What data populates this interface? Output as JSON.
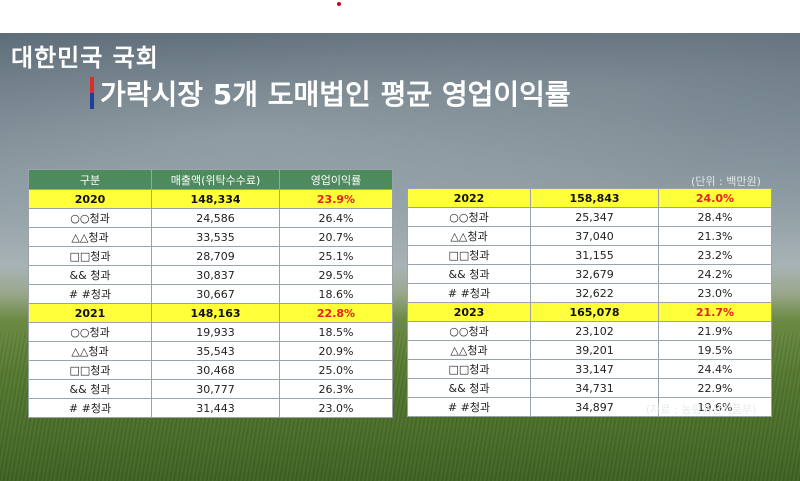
{
  "broadcaster_logo": "대한민국 국회",
  "title": "가락시장 5개 도매법인 평균 영업이익률",
  "unit_note": "(단위 : 백만원)",
  "source_note": "(자료 : 농림축산식품부)",
  "colors": {
    "header_green": "#4d8a5c",
    "year_highlight": "#ffff3a",
    "pct_red": "#e62020"
  },
  "table_left": {
    "headers": [
      "구분",
      "매출액(위탁수수료)",
      "영업이익률"
    ],
    "groups": [
      {
        "year": "2020",
        "total": "148,334",
        "rate": "23.9%",
        "rows": [
          [
            "○○청과",
            "24,586",
            "26.4%"
          ],
          [
            "△△청과",
            "33,535",
            "20.7%"
          ],
          [
            "□□청과",
            "28,709",
            "25.1%"
          ],
          [
            "&& 청과",
            "30,837",
            "29.5%"
          ],
          [
            "# #청과",
            "30,667",
            "18.6%"
          ]
        ]
      },
      {
        "year": "2021",
        "total": "148,163",
        "rate": "22.8%",
        "rows": [
          [
            "○○청과",
            "19,933",
            "18.5%"
          ],
          [
            "△△청과",
            "35,543",
            "20.9%"
          ],
          [
            "□□청과",
            "30,468",
            "25.0%"
          ],
          [
            "&& 청과",
            "30,777",
            "26.3%"
          ],
          [
            "# #청과",
            "31,443",
            "23.0%"
          ]
        ]
      }
    ]
  },
  "table_right": {
    "groups": [
      {
        "year": "2022",
        "total": "158,843",
        "rate": "24.0%",
        "rows": [
          [
            "○○청과",
            "25,347",
            "28.4%"
          ],
          [
            "△△청과",
            "37,040",
            "21.3%"
          ],
          [
            "□□청과",
            "31,155",
            "23.2%"
          ],
          [
            "&& 청과",
            "32,679",
            "24.2%"
          ],
          [
            "# #청과",
            "32,622",
            "23.0%"
          ]
        ]
      },
      {
        "year": "2023",
        "total": "165,078",
        "rate": "21.7%",
        "rows": [
          [
            "○○청과",
            "23,102",
            "21.9%"
          ],
          [
            "△△청과",
            "39,201",
            "19.5%"
          ],
          [
            "□□청과",
            "33,147",
            "24.4%"
          ],
          [
            "&& 청과",
            "34,731",
            "22.9%"
          ],
          [
            "# #청과",
            "34,897",
            "19.6%"
          ]
        ]
      }
    ]
  }
}
